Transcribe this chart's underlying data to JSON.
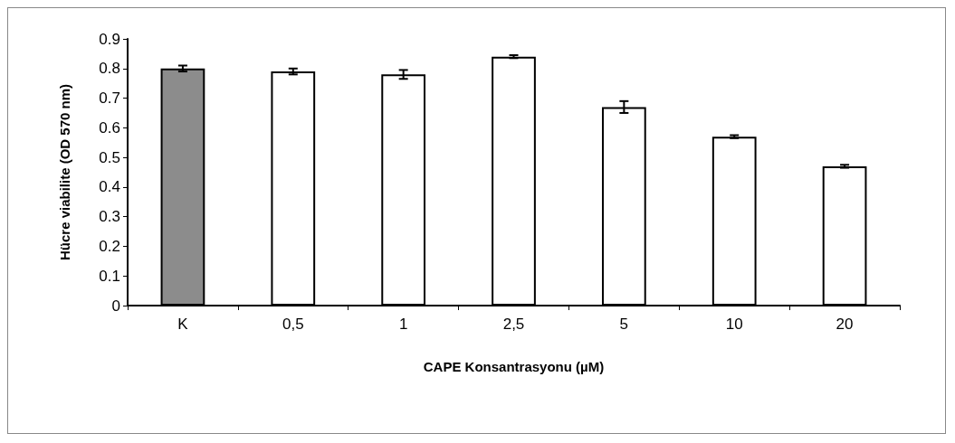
{
  "chart_data": {
    "type": "bar",
    "xlabel": "CAPE Konsantrasyonu (µM)",
    "ylabel": "Hücre viabilite (OD 570 nm)",
    "categories": [
      "K",
      "0,5",
      "1",
      "2,5",
      "5",
      "10",
      "20"
    ],
    "values": [
      0.8,
      0.79,
      0.78,
      0.84,
      0.67,
      0.57,
      0.47
    ],
    "errors": [
      0.01,
      0.01,
      0.015,
      0.005,
      0.02,
      0.005,
      0.005
    ],
    "colors": [
      "#8c8c8c",
      "#ffffff",
      "#ffffff",
      "#ffffff",
      "#ffffff",
      "#ffffff",
      "#ffffff"
    ],
    "ylim": [
      0,
      0.9
    ],
    "yticks": [
      0,
      0.1,
      0.2,
      0.3,
      0.4,
      0.5,
      0.6,
      0.7,
      0.8,
      0.9
    ],
    "grid": false
  }
}
